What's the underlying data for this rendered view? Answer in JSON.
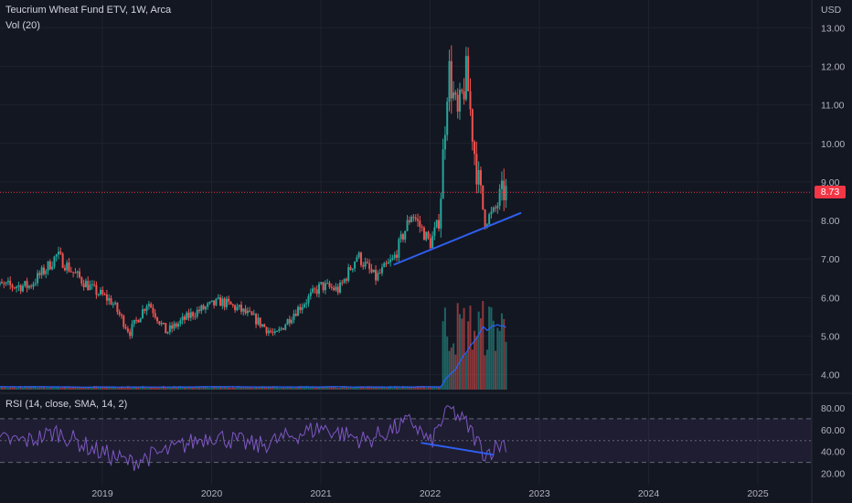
{
  "header": {
    "title": "Teucrium Wheat Fund ETV, 1W, Arca",
    "volume_label": "Vol (20)",
    "currency": "USD"
  },
  "price_pane": {
    "y_ticks": [
      "13.00",
      "12.00",
      "11.00",
      "10.00",
      "9.00",
      "8.00",
      "7.00",
      "6.00",
      "5.00",
      "4.00"
    ],
    "last_price": "8.73",
    "last_price_value": 8.73
  },
  "rsi_pane": {
    "label": "RSI (14, close, SMA, 14, 2)",
    "y_ticks": [
      "80.00",
      "60.00",
      "40.00",
      "20.00"
    ],
    "upper_band": 70,
    "middle_band": 50,
    "lower_band": 30
  },
  "x_axis": {
    "labels": [
      "2019",
      "2020",
      "2021",
      "2022",
      "2023",
      "2024",
      "2025"
    ]
  },
  "colors": {
    "background": "#131722",
    "grid": "#1e222d",
    "up": "#26a69a",
    "down": "#ef5350",
    "volume_ma": "#2962ff",
    "rsi_line": "#7e57c2",
    "rsi_band_fill": "#7e57c2",
    "trendline": "#2f5ff0",
    "last_price": "#f23645"
  },
  "chart_data": {
    "type": "candlestick",
    "price_anchors": [
      {
        "date": "2018-05",
        "close": 6.3
      },
      {
        "date": "2018-07",
        "close": 6.8
      },
      {
        "date": "2018-08",
        "close": 7.1
      },
      {
        "date": "2018-10",
        "close": 6.6
      },
      {
        "date": "2018-12",
        "close": 6.2
      },
      {
        "date": "2019-02",
        "close": 5.9
      },
      {
        "date": "2019-04",
        "close": 5.1
      },
      {
        "date": "2019-06",
        "close": 5.9
      },
      {
        "date": "2019-08",
        "close": 5.1
      },
      {
        "date": "2019-11",
        "close": 5.6
      },
      {
        "date": "2020-02",
        "close": 5.9
      },
      {
        "date": "2020-04",
        "close": 5.7
      },
      {
        "date": "2020-06",
        "close": 5.4
      },
      {
        "date": "2020-08",
        "close": 5.0
      },
      {
        "date": "2020-10",
        "close": 5.6
      },
      {
        "date": "2021-01",
        "close": 6.3
      },
      {
        "date": "2021-03",
        "close": 6.2
      },
      {
        "date": "2021-05",
        "close": 7.1
      },
      {
        "date": "2021-07",
        "close": 6.5
      },
      {
        "date": "2021-09",
        "close": 7.0
      },
      {
        "date": "2021-11",
        "close": 8.2
      },
      {
        "date": "2022-01",
        "close": 7.4
      },
      {
        "date": "2022-02",
        "close": 8.0
      },
      {
        "date": "2022-03",
        "close": 12.0
      },
      {
        "date": "2022-04",
        "close": 10.6
      },
      {
        "date": "2022-05",
        "close": 11.8
      },
      {
        "date": "2022-06",
        "close": 9.5
      },
      {
        "date": "2022-07",
        "close": 8.0
      },
      {
        "date": "2022-08",
        "close": 8.2
      },
      {
        "date": "2022-09",
        "close": 8.73
      }
    ],
    "price_high": 12.7,
    "price_low": 4.9,
    "ylim": [
      3.8,
      13.2
    ],
    "rsi_anchors": [
      {
        "date": "2018-05",
        "value": 50
      },
      {
        "date": "2018-08",
        "value": 58
      },
      {
        "date": "2018-12",
        "value": 42
      },
      {
        "date": "2019-04",
        "value": 30
      },
      {
        "date": "2019-08",
        "value": 40
      },
      {
        "date": "2020-01",
        "value": 55
      },
      {
        "date": "2020-06",
        "value": 45
      },
      {
        "date": "2021-01",
        "value": 62
      },
      {
        "date": "2021-06",
        "value": 50
      },
      {
        "date": "2021-11",
        "value": 68
      },
      {
        "date": "2022-01",
        "value": 47
      },
      {
        "date": "2022-03",
        "value": 80
      },
      {
        "date": "2022-05",
        "value": 65
      },
      {
        "date": "2022-07",
        "value": 38
      },
      {
        "date": "2022-09",
        "value": 48
      }
    ],
    "trendlines": [
      {
        "pane": "price",
        "from": {
          "date": "2021-09",
          "value": 6.85
        },
        "to": {
          "date": "2022-11",
          "value": 8.2
        }
      },
      {
        "pane": "rsi",
        "from": {
          "date": "2021-12",
          "value": 48
        },
        "to": {
          "date": "2022-08",
          "value": 37
        }
      }
    ]
  }
}
